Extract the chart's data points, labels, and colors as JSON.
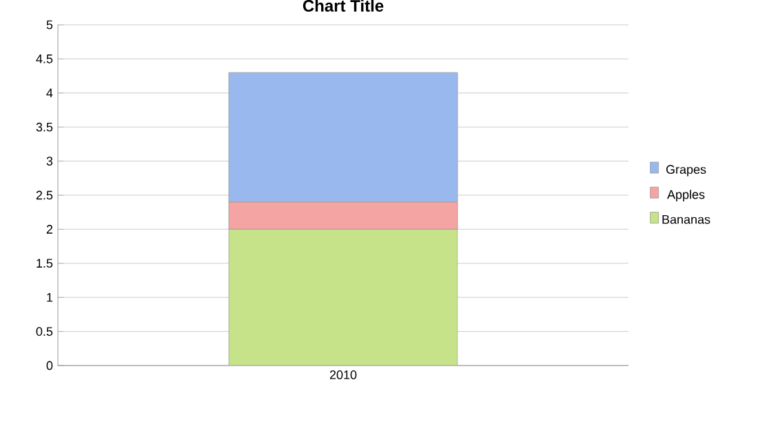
{
  "chart_data": {
    "type": "bar",
    "stacked": true,
    "title": "Chart Title",
    "categories": [
      "2010"
    ],
    "series": [
      {
        "name": "Bananas",
        "color": "#c6e38a",
        "values": [
          2.0
        ]
      },
      {
        "name": "Apples",
        "color": "#f4a4a2",
        "values": [
          0.4
        ]
      },
      {
        "name": "Grapes",
        "color": "#98b8ee",
        "values": [
          1.9
        ]
      }
    ],
    "ylim": [
      0,
      5
    ],
    "yticks": [
      0,
      0.5,
      1,
      1.5,
      2,
      2.5,
      3,
      3.5,
      4,
      4.5,
      5
    ],
    "grid": "y",
    "legend": "right"
  }
}
